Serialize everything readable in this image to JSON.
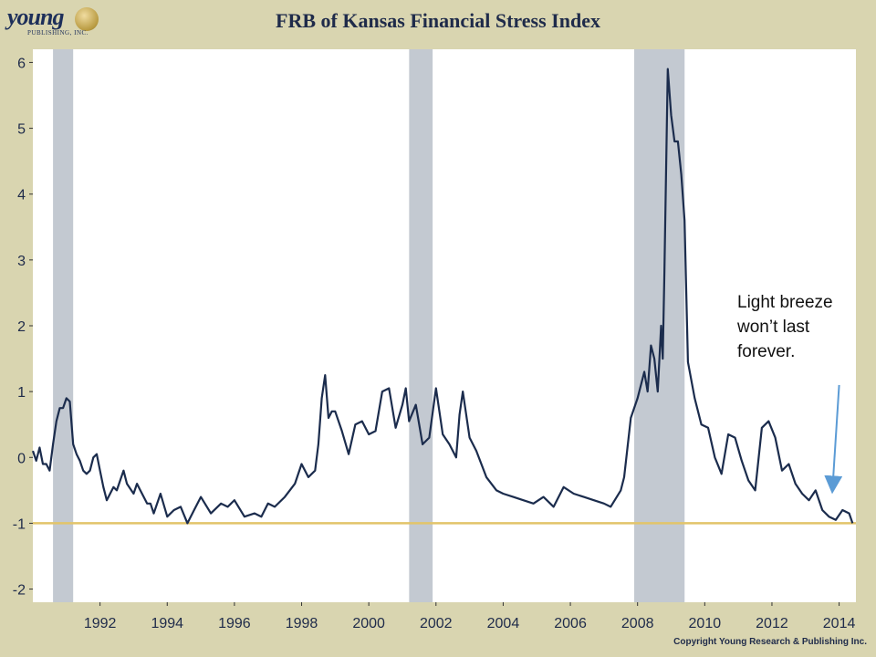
{
  "header": {
    "logo_text": "young",
    "logo_subtext": "PUBLISHING, INC.",
    "title": "FRB of Kansas Financial Stress Index"
  },
  "footer": {
    "copyright": "Copyright Young Research & Publishing Inc."
  },
  "annotation": {
    "text": "Light breeze\nwon’t last\nforever."
  },
  "colors": {
    "background": "#d9d5b0",
    "line": "#1b2c4d",
    "recession": "#c3c9d1",
    "reference": "#e2c46a",
    "arrow": "#5b9bd5"
  },
  "chart_data": {
    "type": "line",
    "title": "FRB of Kansas Financial Stress Index",
    "xlabel": "",
    "ylabel": "",
    "xlim": [
      1990.0,
      2014.5
    ],
    "ylim": [
      -2.2,
      6.2
    ],
    "x_ticks": [
      1992,
      1994,
      1996,
      1998,
      2000,
      2002,
      2004,
      2006,
      2008,
      2010,
      2012,
      2014
    ],
    "y_ticks": [
      6,
      5,
      4,
      3,
      2,
      1,
      0,
      -1,
      -2
    ],
    "y_tick_labels": [
      "6",
      "5",
      "4",
      "3",
      "2",
      "1",
      "0",
      "-1",
      "-2"
    ],
    "reference_line": -1,
    "recessions": [
      [
        1990.6,
        1991.2
      ],
      [
        2001.2,
        2001.9
      ],
      [
        2007.9,
        2009.4
      ]
    ],
    "annotation_arrow": {
      "from": [
        2014.0,
        1.1
      ],
      "to": [
        2013.8,
        -0.5
      ]
    },
    "series": [
      {
        "name": "Financial Stress Index",
        "x": [
          1990.0,
          1990.1,
          1990.2,
          1990.3,
          1990.4,
          1990.5,
          1990.6,
          1990.7,
          1990.8,
          1990.9,
          1991.0,
          1991.1,
          1991.2,
          1991.3,
          1991.4,
          1991.5,
          1991.6,
          1991.7,
          1991.8,
          1991.9,
          1992.0,
          1992.1,
          1992.2,
          1992.4,
          1992.5,
          1992.6,
          1992.7,
          1992.8,
          1993.0,
          1993.1,
          1993.2,
          1993.4,
          1993.5,
          1993.6,
          1993.8,
          1994.0,
          1994.2,
          1994.4,
          1994.6,
          1994.8,
          1995.0,
          1995.3,
          1995.6,
          1995.8,
          1996.0,
          1996.3,
          1996.6,
          1996.8,
          1997.0,
          1997.2,
          1997.5,
          1997.8,
          1998.0,
          1998.2,
          1998.4,
          1998.5,
          1998.6,
          1998.7,
          1998.8,
          1998.9,
          1999.0,
          1999.2,
          1999.4,
          1999.6,
          1999.8,
          2000.0,
          2000.2,
          2000.4,
          2000.6,
          2000.8,
          2001.0,
          2001.1,
          2001.2,
          2001.4,
          2001.6,
          2001.8,
          2002.0,
          2002.2,
          2002.4,
          2002.6,
          2002.7,
          2002.8,
          2003.0,
          2003.2,
          2003.5,
          2003.8,
          2004.0,
          2004.3,
          2004.6,
          2004.9,
          2005.2,
          2005.5,
          2005.8,
          2006.1,
          2006.4,
          2006.7,
          2007.0,
          2007.2,
          2007.5,
          2007.6,
          2007.8,
          2008.0,
          2008.2,
          2008.3,
          2008.4,
          2008.5,
          2008.6,
          2008.7,
          2008.75,
          2008.8,
          2008.9,
          2009.0,
          2009.1,
          2009.2,
          2009.3,
          2009.4,
          2009.5,
          2009.7,
          2009.9,
          2010.1,
          2010.3,
          2010.5,
          2010.7,
          2010.9,
          2011.1,
          2011.3,
          2011.5,
          2011.7,
          2011.9,
          2012.1,
          2012.3,
          2012.5,
          2012.7,
          2012.9,
          2013.1,
          2013.3,
          2013.5,
          2013.7,
          2013.9,
          2014.1,
          2014.3,
          2014.4
        ],
        "y": [
          0.1,
          -0.05,
          0.15,
          -0.1,
          -0.1,
          -0.2,
          0.2,
          0.55,
          0.75,
          0.75,
          0.9,
          0.85,
          0.2,
          0.05,
          -0.05,
          -0.2,
          -0.25,
          -0.2,
          0.0,
          0.05,
          -0.2,
          -0.45,
          -0.65,
          -0.45,
          -0.5,
          -0.35,
          -0.2,
          -0.4,
          -0.55,
          -0.4,
          -0.5,
          -0.7,
          -0.7,
          -0.85,
          -0.55,
          -0.9,
          -0.8,
          -0.75,
          -1.0,
          -0.8,
          -0.6,
          -0.85,
          -0.7,
          -0.75,
          -0.65,
          -0.9,
          -0.85,
          -0.9,
          -0.7,
          -0.75,
          -0.6,
          -0.4,
          -0.1,
          -0.3,
          -0.2,
          0.2,
          0.9,
          1.25,
          0.6,
          0.7,
          0.7,
          0.4,
          0.05,
          0.5,
          0.55,
          0.35,
          0.4,
          1.0,
          1.05,
          0.45,
          0.8,
          1.05,
          0.55,
          0.8,
          0.2,
          0.3,
          1.05,
          0.35,
          0.2,
          0.0,
          0.65,
          1.0,
          0.3,
          0.1,
          -0.3,
          -0.5,
          -0.55,
          -0.6,
          -0.65,
          -0.7,
          -0.6,
          -0.75,
          -0.45,
          -0.55,
          -0.6,
          -0.65,
          -0.7,
          -0.75,
          -0.5,
          -0.3,
          0.6,
          0.9,
          1.3,
          1.0,
          1.7,
          1.5,
          1.0,
          2.0,
          1.5,
          2.8,
          5.9,
          5.2,
          4.8,
          4.8,
          4.3,
          3.6,
          1.45,
          0.9,
          0.5,
          0.45,
          0.0,
          -0.25,
          0.35,
          0.3,
          -0.05,
          -0.35,
          -0.5,
          0.45,
          0.55,
          0.3,
          -0.2,
          -0.1,
          -0.4,
          -0.55,
          -0.65,
          -0.5,
          -0.8,
          -0.9,
          -0.95,
          -0.8,
          -0.85,
          -1.0
        ]
      }
    ]
  }
}
